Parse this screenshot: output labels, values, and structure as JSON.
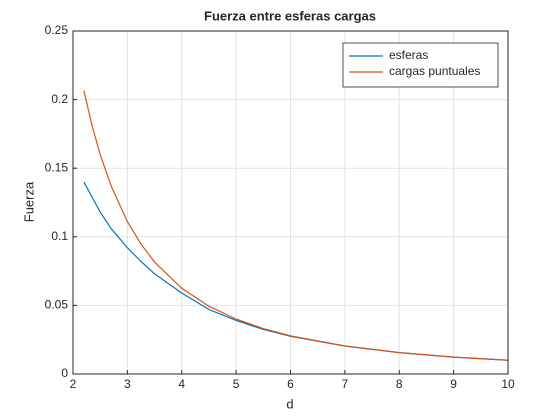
{
  "chart_data": {
    "type": "line",
    "title": "Fuerza entre esferas cargas",
    "x_label": "d",
    "y_label": "Fuerza",
    "x": [
      2.2,
      2.35,
      2.5,
      2.7,
      3,
      3.25,
      3.5,
      4,
      4.5,
      5,
      5.5,
      6,
      7,
      8,
      9,
      10
    ],
    "series": [
      {
        "name": "esferas",
        "color": "#0072bd",
        "values": [
          0.14,
          0.129,
          0.118,
          0.106,
          0.092,
          0.082,
          0.073,
          0.059,
          0.047,
          0.039,
          0.0325,
          0.0275,
          0.0204,
          0.0156,
          0.0123,
          0.01
        ]
      },
      {
        "name": "cargas puntuales",
        "color": "#d95319",
        "values": [
          0.2066,
          0.1811,
          0.16,
          0.1372,
          0.1111,
          0.0947,
          0.0816,
          0.0625,
          0.0494,
          0.04,
          0.0331,
          0.0278,
          0.0204,
          0.0156,
          0.0123,
          0.01
        ]
      }
    ],
    "xlim": [
      2,
      10
    ],
    "xticks": [
      2,
      3,
      4,
      5,
      6,
      7,
      8,
      9,
      10
    ],
    "ylim": [
      0,
      0.25
    ],
    "yticks": [
      0,
      0.05,
      0.1,
      0.15,
      0.2,
      0.25
    ],
    "grid": true,
    "legend_position": "top-right"
  }
}
